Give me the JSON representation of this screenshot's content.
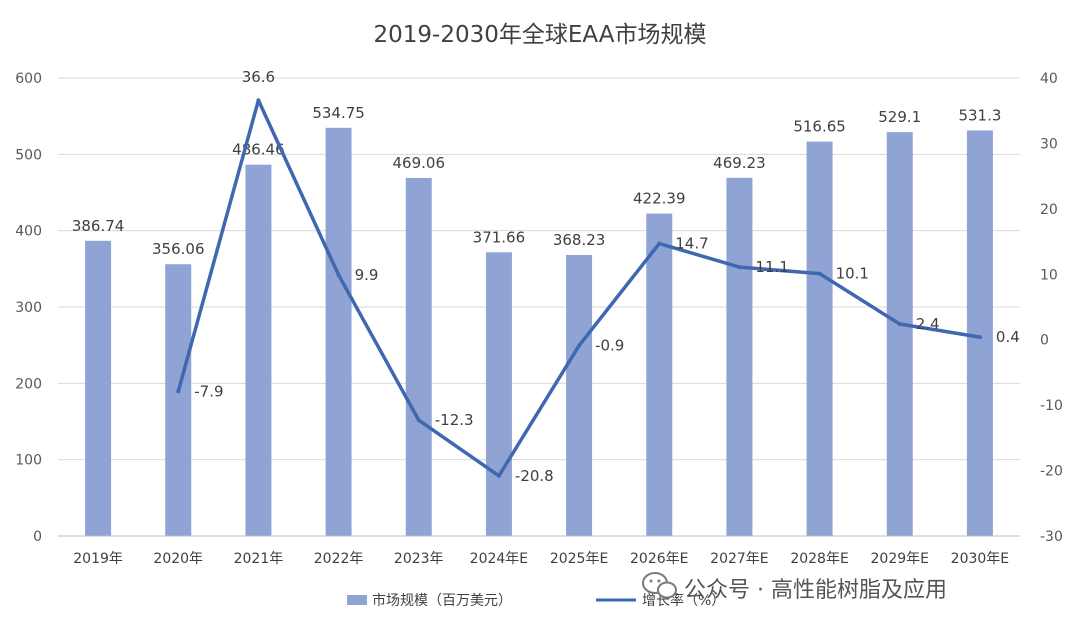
{
  "chart_data": {
    "type": "bar+line",
    "title": "2019-2030年全球EAA市场规模",
    "categories": [
      "2019年",
      "2020年",
      "2021年",
      "2022年",
      "2023年",
      "2024年E",
      "2025年E",
      "2026年E",
      "2027年E",
      "2028年E",
      "2029年E",
      "2030年E"
    ],
    "series": [
      {
        "name": "市场规模（百万美元）",
        "type": "bar",
        "axis": "left",
        "color": "#8fa3d4",
        "values": [
          386.74,
          356.06,
          486.46,
          534.75,
          469.06,
          371.66,
          368.23,
          422.39,
          469.23,
          516.65,
          529.1,
          531.3
        ],
        "labels": [
          "386.74",
          "356.06",
          "486.46",
          "534.75",
          "469.06",
          "371.66",
          "368.23",
          "422.39",
          "469.23",
          "516.65",
          "529.1",
          "531.3"
        ]
      },
      {
        "name": "增长率（%）",
        "type": "line",
        "axis": "right",
        "color": "#4068b0",
        "values": [
          null,
          -7.9,
          36.6,
          9.9,
          -12.3,
          -20.8,
          -0.9,
          14.7,
          11.1,
          10.1,
          2.4,
          0.4
        ],
        "labels": [
          "",
          "-7.9",
          "36.6",
          "9.9",
          "-12.3",
          "-20.8",
          "-0.9",
          "14.7",
          "11.1",
          "10.1",
          "2.4",
          "0.4"
        ]
      }
    ],
    "y_left": {
      "min": 0,
      "max": 600,
      "step": 100,
      "ticks": [
        "0",
        "100",
        "200",
        "300",
        "400",
        "500",
        "600"
      ]
    },
    "y_right": {
      "min": -30,
      "max": 40,
      "step": 10,
      "ticks": [
        "-30",
        "-20",
        "-10",
        "0",
        "10",
        "20",
        "30",
        "40"
      ]
    },
    "grid": true,
    "legend_position": "bottom"
  },
  "watermark": {
    "text": "公众号 · 高性能树脂及应用",
    "icon": "wechat-icon"
  }
}
